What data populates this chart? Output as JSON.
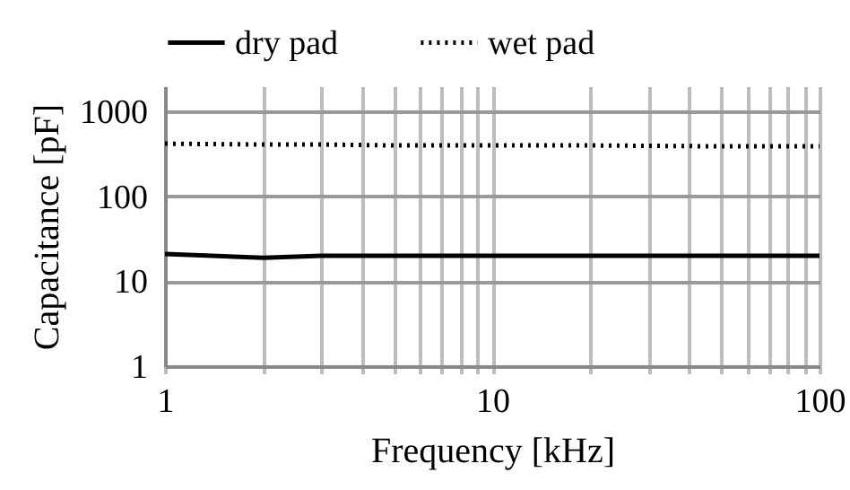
{
  "chart_data": {
    "type": "line",
    "xlabel": "Frequency [kHz]",
    "ylabel": "Capacitance [pF]",
    "x": [
      1,
      2,
      3,
      5,
      10,
      20,
      50,
      100
    ],
    "series": [
      {
        "name": "dry pad",
        "color": "#000000",
        "line_style": "solid",
        "values": [
          21,
          19,
          20,
          20,
          20,
          20,
          20,
          20
        ]
      },
      {
        "name": "wet pad",
        "color": "#000000",
        "line_style": "dotted",
        "values": [
          420,
          410,
          410,
          400,
          400,
          400,
          390,
          390
        ]
      }
    ],
    "log": "xy",
    "xlim": [
      1,
      100
    ],
    "ylim": [
      1,
      2000
    ],
    "xticks": [
      1,
      {
        "value": 2,
        "label": null
      },
      {
        "value": 3,
        "label": null
      },
      {
        "value": 4,
        "label": null
      },
      {
        "value": 5,
        "label": null
      },
      {
        "value": 6,
        "label": null
      },
      {
        "value": 7,
        "label": null
      },
      {
        "value": 8,
        "label": null
      },
      {
        "value": 9,
        "label": null
      },
      10,
      {
        "value": 20,
        "label": null
      },
      {
        "value": 30,
        "label": null
      },
      {
        "value": 40,
        "label": null
      },
      {
        "value": 50,
        "label": null
      },
      {
        "value": 60,
        "label": null
      },
      {
        "value": 70,
        "label": null
      },
      {
        "value": 80,
        "label": null
      },
      {
        "value": 90,
        "label": null
      },
      100
    ],
    "yticks": [
      1,
      10,
      100,
      1000
    ],
    "grid": true,
    "legend": "top",
    "marker": "none"
  }
}
